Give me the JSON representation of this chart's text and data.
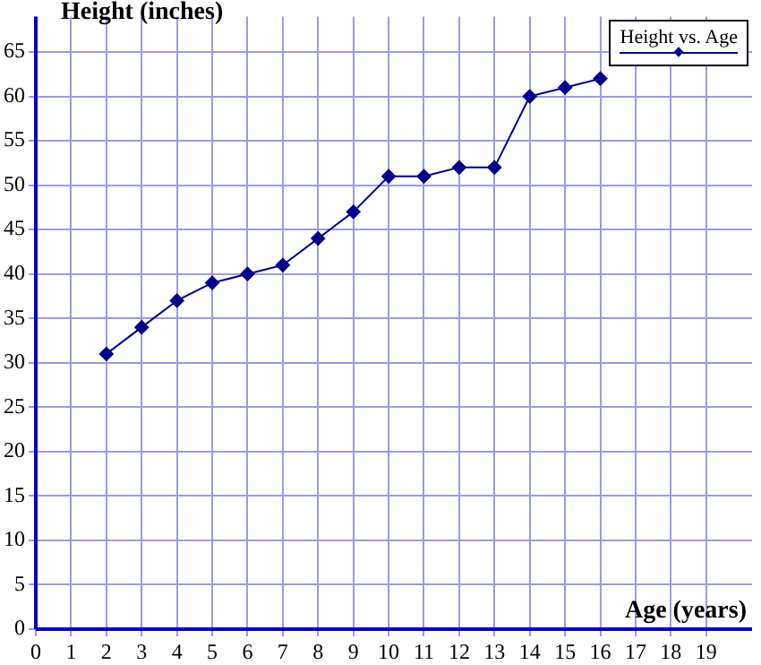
{
  "chart_data": {
    "type": "line",
    "xlabel": "Age (years)",
    "ylabel": "Height (inches)",
    "x": [
      2,
      3,
      4,
      5,
      6,
      7,
      8,
      9,
      10,
      11,
      12,
      13,
      14,
      15,
      16
    ],
    "series": [
      {
        "name": "Height vs. Age",
        "color": "#00008b",
        "values": [
          31,
          34,
          37,
          39,
          40,
          41,
          44,
          47,
          51,
          51,
          52,
          52,
          60,
          61,
          62
        ]
      }
    ],
    "xlim": [
      0,
      20.3
    ],
    "xticks": [
      0,
      1,
      2,
      3,
      4,
      5,
      6,
      7,
      8,
      9,
      10,
      11,
      12,
      13,
      14,
      15,
      16,
      17,
      18,
      19
    ],
    "ylim": [
      0,
      69
    ],
    "yticks": [
      0,
      5,
      10,
      15,
      20,
      25,
      30,
      35,
      40,
      45,
      50,
      55,
      60,
      65
    ],
    "grid": true,
    "legend": "top right",
    "marker": "diamond",
    "line_style": "solid"
  }
}
